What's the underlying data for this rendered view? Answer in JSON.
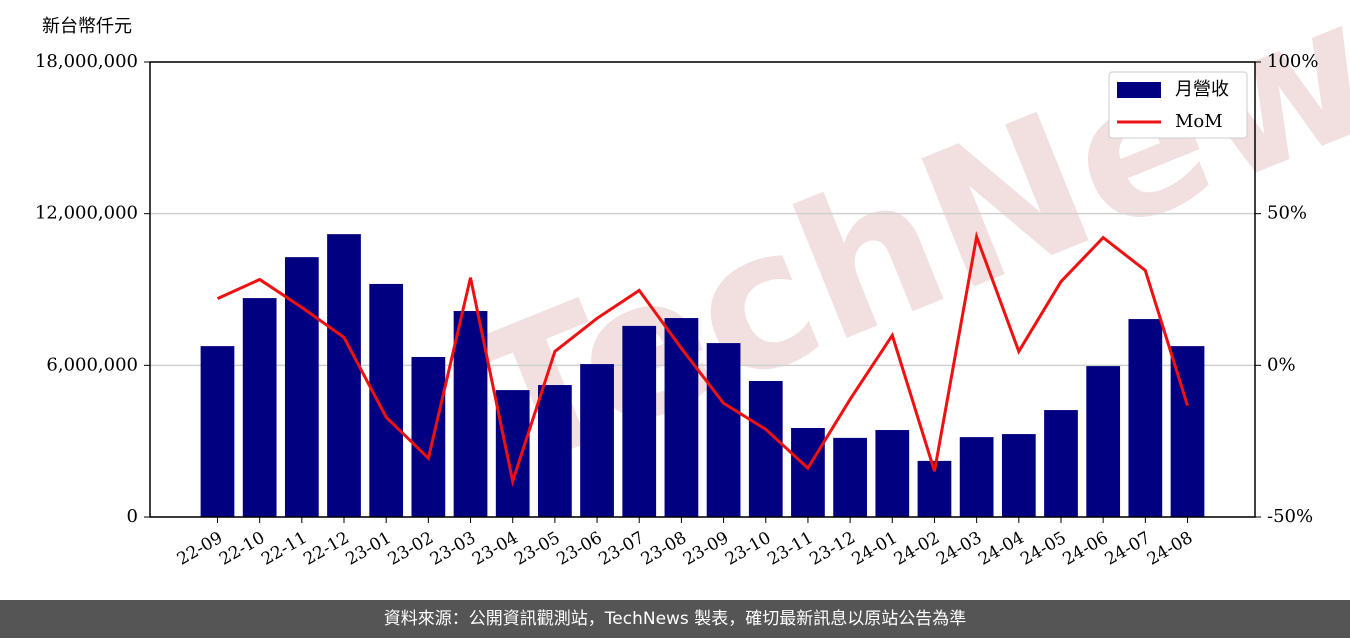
{
  "chart_data": {
    "type": "bar",
    "y_label": "新台幣仟元",
    "watermark": "TechNews",
    "source": "資料來源：公開資訊觀測站，TechNews 製表，確切最新訊息以原站公告為準",
    "categories": [
      "22-09",
      "22-10",
      "22-11",
      "22-12",
      "23-01",
      "23-02",
      "23-03",
      "23-04",
      "23-05",
      "23-06",
      "23-07",
      "23-08",
      "23-09",
      "23-10",
      "23-11",
      "23-12",
      "24-01",
      "24-02",
      "24-03",
      "24-04",
      "24-05",
      "24-06",
      "24-07",
      "24-08"
    ],
    "series": [
      {
        "name": "月營收",
        "type": "bar",
        "color": "#000080",
        "values": [
          6760000,
          8660000,
          10280000,
          11190000,
          9220000,
          6330000,
          8150000,
          5020000,
          5220000,
          6050000,
          7560000,
          7870000,
          6880000,
          5380000,
          3520000,
          3130000,
          3440000,
          2220000,
          3160000,
          3280000,
          4230000,
          5970000,
          7830000,
          6760000
        ]
      },
      {
        "name": "MoM",
        "type": "line",
        "axis": "y2",
        "color": "#ee1111",
        "values": [
          22.0,
          28.3,
          19.1,
          9.2,
          -17.1,
          -30.6,
          28.9,
          -38.2,
          4.6,
          15.5,
          24.7,
          5.6,
          -12.5,
          -21.1,
          -33.9,
          -11.2,
          9.9,
          -34.9,
          42.4,
          4.6,
          27.6,
          42.1,
          31.3,
          -13.2
        ]
      }
    ],
    "ylim": [
      0,
      18000000
    ],
    "yticks": [
      0,
      {
        "value": 6000000,
        "label": "6,000,000"
      },
      {
        "value": 12000000,
        "label": "12,000,000"
      },
      {
        "value": 18000000,
        "label": "18,000,000"
      }
    ],
    "y2lim": [
      -50,
      100
    ],
    "y2ticks": [
      {
        "value": -50,
        "label": "-50%"
      },
      {
        "value": 0,
        "label": "0%"
      },
      {
        "value": 50,
        "label": "50%"
      },
      {
        "value": 100,
        "label": "100%"
      }
    ],
    "grid": true,
    "legend": "upper right"
  }
}
